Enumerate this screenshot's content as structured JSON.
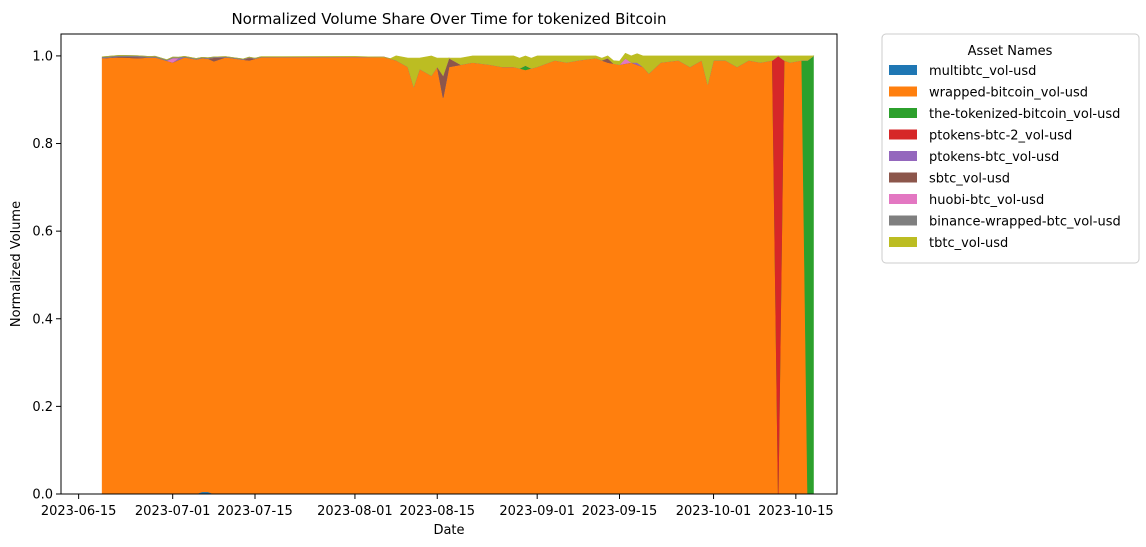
{
  "chart_data": {
    "type": "area",
    "stacked": true,
    "normalized": true,
    "title": "Normalized Volume Share Over Time for tokenized Bitcoin",
    "xlabel": "Date",
    "ylabel": "Normalized Volume",
    "ylim": [
      0,
      1.05
    ],
    "xlim": [
      "2023-06-12",
      "2023-10-22"
    ],
    "x_ticks": [
      "2023-06-15",
      "2023-07-01",
      "2023-07-15",
      "2023-08-01",
      "2023-08-15",
      "2023-09-01",
      "2023-09-15",
      "2023-10-01",
      "2023-10-15"
    ],
    "y_ticks": [
      "0.0",
      "0.2",
      "0.4",
      "0.6",
      "0.8",
      "1.0"
    ],
    "y_tick_values": [
      0,
      0.2,
      0.4,
      0.6,
      0.8,
      1.0
    ],
    "grid": false,
    "legend": {
      "title": "Asset Names",
      "placement": "outside-right"
    },
    "series": [
      {
        "name": "multibtc_vol-usd",
        "color": "#1f77b4",
        "points": [
          [
            "2023-06-19",
            0.0
          ],
          [
            "2023-07-05",
            0.0
          ],
          [
            "2023-07-06",
            0.005
          ],
          [
            "2023-07-07",
            0.005
          ],
          [
            "2023-07-08",
            0.0
          ],
          [
            "2023-10-11",
            0.0
          ],
          [
            "2023-10-12",
            0.0
          ],
          [
            "2023-10-18",
            0.0
          ]
        ]
      },
      {
        "name": "wrapped-bitcoin_vol-usd",
        "color": "#ff7f0e",
        "points": [
          [
            "2023-06-19",
            0.995
          ],
          [
            "2023-06-22",
            0.997
          ],
          [
            "2023-06-25",
            0.995
          ],
          [
            "2023-06-28",
            0.997
          ],
          [
            "2023-07-01",
            0.985
          ],
          [
            "2023-07-03",
            0.997
          ],
          [
            "2023-07-06",
            0.99
          ],
          [
            "2023-07-08",
            0.988
          ],
          [
            "2023-07-10",
            0.997
          ],
          [
            "2023-07-14",
            0.99
          ],
          [
            "2023-07-16",
            0.997
          ],
          [
            "2023-08-01",
            0.998
          ],
          [
            "2023-08-06",
            0.997
          ],
          [
            "2023-08-08",
            0.99
          ],
          [
            "2023-08-10",
            0.975
          ],
          [
            "2023-08-11",
            0.93
          ],
          [
            "2023-08-12",
            0.97
          ],
          [
            "2023-08-14",
            0.955
          ],
          [
            "2023-08-15",
            0.975
          ],
          [
            "2023-08-16",
            0.905
          ],
          [
            "2023-08-17",
            0.975
          ],
          [
            "2023-08-19",
            0.98
          ],
          [
            "2023-08-21",
            0.985
          ],
          [
            "2023-08-24",
            0.98
          ],
          [
            "2023-08-26",
            0.975
          ],
          [
            "2023-08-28",
            0.975
          ],
          [
            "2023-08-30",
            0.968
          ],
          [
            "2023-09-01",
            0.975
          ],
          [
            "2023-09-04",
            0.99
          ],
          [
            "2023-09-06",
            0.985
          ],
          [
            "2023-09-08",
            0.99
          ],
          [
            "2023-09-11",
            0.995
          ],
          [
            "2023-09-13",
            0.985
          ],
          [
            "2023-09-15",
            0.98
          ],
          [
            "2023-09-17",
            0.985
          ],
          [
            "2023-09-19",
            0.975
          ],
          [
            "2023-09-20",
            0.96
          ],
          [
            "2023-09-22",
            0.985
          ],
          [
            "2023-09-25",
            0.99
          ],
          [
            "2023-09-27",
            0.975
          ],
          [
            "2023-09-29",
            0.99
          ],
          [
            "2023-09-30",
            0.935
          ],
          [
            "2023-10-01",
            0.99
          ],
          [
            "2023-10-03",
            0.99
          ],
          [
            "2023-10-05",
            0.975
          ],
          [
            "2023-10-07",
            0.99
          ],
          [
            "2023-10-09",
            0.985
          ],
          [
            "2023-10-11",
            0.99
          ],
          [
            "2023-10-12",
            0.0
          ],
          [
            "2023-10-13",
            0.99
          ],
          [
            "2023-10-14",
            0.985
          ],
          [
            "2023-10-16",
            0.99
          ],
          [
            "2023-10-17",
            0.0
          ],
          [
            "2023-10-18",
            0.0
          ]
        ]
      },
      {
        "name": "the-tokenized-bitcoin_vol-usd",
        "color": "#2ca02c",
        "points": [
          [
            "2023-06-19",
            0.0
          ],
          [
            "2023-08-29",
            0.0
          ],
          [
            "2023-08-30",
            0.01
          ],
          [
            "2023-08-31",
            0.0
          ],
          [
            "2023-10-16",
            0.0
          ],
          [
            "2023-10-17",
            0.99
          ],
          [
            "2023-10-18",
            1.0
          ]
        ]
      },
      {
        "name": "ptokens-btc-2_vol-usd",
        "color": "#d62728",
        "points": [
          [
            "2023-06-19",
            0.0
          ],
          [
            "2023-10-11",
            0.0
          ],
          [
            "2023-10-12",
            1.0
          ],
          [
            "2023-10-13",
            0.0
          ],
          [
            "2023-10-18",
            0.0
          ]
        ]
      },
      {
        "name": "ptokens-btc_vol-usd",
        "color": "#9467bd",
        "points": [
          [
            "2023-06-19",
            0.0
          ],
          [
            "2023-07-01",
            0.0
          ],
          [
            "2023-07-02",
            0.004
          ],
          [
            "2023-07-03",
            0.0
          ],
          [
            "2023-09-17",
            0.0
          ],
          [
            "2023-09-18",
            0.005
          ],
          [
            "2023-09-19",
            0.0
          ],
          [
            "2023-10-18",
            0.0
          ]
        ]
      },
      {
        "name": "sbtc_vol-usd",
        "color": "#8c564b",
        "points": [
          [
            "2023-06-19",
            0.0
          ],
          [
            "2023-06-25",
            0.003
          ],
          [
            "2023-06-27",
            0.0
          ],
          [
            "2023-07-07",
            0.0
          ],
          [
            "2023-07-08",
            0.008
          ],
          [
            "2023-07-10",
            0.0
          ],
          [
            "2023-07-13",
            0.0
          ],
          [
            "2023-07-14",
            0.006
          ],
          [
            "2023-07-15",
            0.0
          ],
          [
            "2023-08-15",
            0.0
          ],
          [
            "2023-08-16",
            0.05
          ],
          [
            "2023-08-17",
            0.02
          ],
          [
            "2023-08-19",
            0.0
          ],
          [
            "2023-09-12",
            0.0
          ],
          [
            "2023-09-13",
            0.01
          ],
          [
            "2023-09-14",
            0.0
          ],
          [
            "2023-10-18",
            0.0
          ]
        ]
      },
      {
        "name": "huobi-btc_vol-usd",
        "color": "#e377c2",
        "points": [
          [
            "2023-06-19",
            0.0
          ],
          [
            "2023-06-30",
            0.0
          ],
          [
            "2023-07-01",
            0.01
          ],
          [
            "2023-07-02",
            0.0
          ],
          [
            "2023-09-15",
            0.0
          ],
          [
            "2023-09-16",
            0.012
          ],
          [
            "2023-09-17",
            0.0
          ],
          [
            "2023-10-18",
            0.0
          ]
        ]
      },
      {
        "name": "binance-wrapped-btc_vol-usd",
        "color": "#7f7f7f",
        "points": [
          [
            "2023-06-19",
            0.003
          ],
          [
            "2023-07-05",
            0.002
          ],
          [
            "2023-07-20",
            0.001
          ],
          [
            "2023-08-10",
            0.0
          ],
          [
            "2023-10-18",
            0.0
          ]
        ]
      },
      {
        "name": "tbtc_vol-usd",
        "color": "#bcbd22",
        "points": [
          [
            "2023-06-19",
            0.0
          ],
          [
            "2023-08-07",
            0.0
          ],
          [
            "2023-08-08",
            0.01
          ],
          [
            "2023-08-10",
            0.02
          ],
          [
            "2023-08-11",
            0.065
          ],
          [
            "2023-08-12",
            0.025
          ],
          [
            "2023-08-14",
            0.045
          ],
          [
            "2023-08-15",
            0.02
          ],
          [
            "2023-08-16",
            0.04
          ],
          [
            "2023-08-17",
            0.0
          ],
          [
            "2023-08-19",
            0.015
          ],
          [
            "2023-08-21",
            0.015
          ],
          [
            "2023-08-24",
            0.02
          ],
          [
            "2023-08-26",
            0.025
          ],
          [
            "2023-08-28",
            0.025
          ],
          [
            "2023-08-30",
            0.022
          ],
          [
            "2023-09-01",
            0.025
          ],
          [
            "2023-09-04",
            0.01
          ],
          [
            "2023-09-06",
            0.015
          ],
          [
            "2023-09-08",
            0.01
          ],
          [
            "2023-09-11",
            0.005
          ],
          [
            "2023-09-13",
            0.005
          ],
          [
            "2023-09-15",
            0.008
          ],
          [
            "2023-09-17",
            0.015
          ],
          [
            "2023-09-19",
            0.025
          ],
          [
            "2023-09-20",
            0.04
          ],
          [
            "2023-09-22",
            0.015
          ],
          [
            "2023-09-25",
            0.01
          ],
          [
            "2023-09-27",
            0.025
          ],
          [
            "2023-09-29",
            0.01
          ],
          [
            "2023-09-30",
            0.065
          ],
          [
            "2023-10-01",
            0.01
          ],
          [
            "2023-10-03",
            0.01
          ],
          [
            "2023-10-05",
            0.025
          ],
          [
            "2023-10-07",
            0.01
          ],
          [
            "2023-10-09",
            0.015
          ],
          [
            "2023-10-11",
            0.01
          ],
          [
            "2023-10-12",
            0.0
          ],
          [
            "2023-10-13",
            0.01
          ],
          [
            "2023-10-14",
            0.015
          ],
          [
            "2023-10-16",
            0.01
          ],
          [
            "2023-10-17",
            0.01
          ],
          [
            "2023-10-18",
            0.0
          ]
        ]
      }
    ]
  }
}
